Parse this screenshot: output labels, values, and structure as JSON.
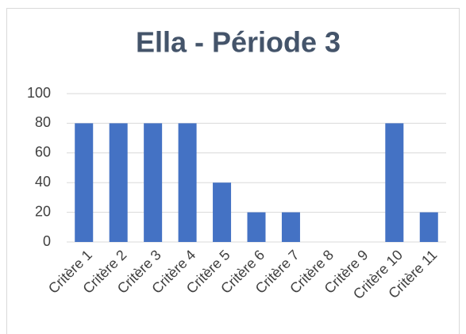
{
  "chart_data": {
    "type": "bar",
    "title": "Ella - Période 3",
    "categories": [
      "Critère 1",
      "Critère 2",
      "Critère 3",
      "Critère 4",
      "Critère 5",
      "Critère 6",
      "Critère 7",
      "Critère 8",
      "Critère 9",
      "Critère 10",
      "Critère 11"
    ],
    "values": [
      80,
      80,
      80,
      80,
      40,
      20,
      20,
      0,
      0,
      80,
      20
    ],
    "color": "#4472c4",
    "ylim": [
      0,
      100
    ],
    "yticks": [
      0,
      20,
      40,
      60,
      80,
      100
    ],
    "grid": true
  }
}
